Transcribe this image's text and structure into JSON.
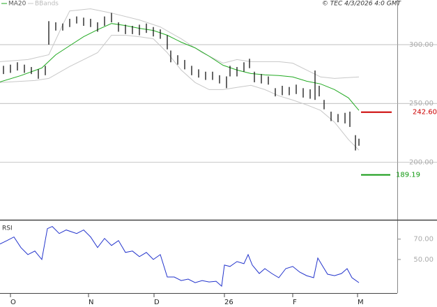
{
  "chart_data": [
    {
      "type": "ohlc",
      "credit": "© TEC 4/3/2026 4:0 GMT",
      "xlim": [
        0,
        114
      ],
      "ylim": [
        151,
        338
      ],
      "yticks": [
        {
          "value": 300,
          "label": "300.00"
        },
        {
          "value": 250,
          "label": "250.00"
        },
        {
          "value": 200,
          "label": "200.00"
        }
      ],
      "grid": true,
      "bars": {
        "color": "#000000",
        "x": [
          1,
          3,
          5,
          7,
          9,
          11,
          13,
          14,
          16,
          18,
          20,
          22,
          24,
          26,
          28,
          30,
          32,
          34,
          36,
          38,
          40,
          42,
          44,
          46,
          48,
          49,
          51,
          53,
          55,
          57,
          59,
          61,
          63,
          65,
          66,
          68,
          70,
          71.6,
          73,
          75,
          77,
          79,
          81,
          83,
          85,
          87,
          89,
          90.4,
          91.6,
          93,
          95,
          97,
          99,
          100.4,
          102,
          103
        ],
        "high": [
          282,
          283,
          285,
          283,
          281,
          279,
          282,
          320,
          319,
          318,
          322,
          324,
          323,
          322,
          319,
          324,
          327,
          319,
          317,
          316,
          317,
          318,
          315,
          313,
          308,
          295,
          291,
          287,
          282,
          279,
          277,
          277,
          274,
          273,
          282,
          281,
          285,
          288,
          277,
          275,
          273,
          263,
          265,
          264,
          266,
          263,
          262,
          278,
          265,
          253,
          243,
          241,
          242,
          243,
          223,
          220
        ],
        "low": [
          275,
          276,
          278,
          276,
          275,
          271,
          274,
          300,
          312,
          312,
          315,
          318,
          316,
          315,
          311,
          316,
          319,
          311,
          309,
          309,
          308,
          310,
          307,
          305,
          296,
          285,
          283,
          279,
          274,
          272,
          270,
          270,
          267,
          263,
          273,
          273,
          277,
          280,
          268,
          267,
          266,
          256,
          257,
          257,
          258,
          255,
          254,
          253,
          256,
          245,
          235,
          234,
          233,
          230,
          210,
          214
        ]
      },
      "ma": {
        "name": "MA20",
        "color": "#22aa22",
        "x": [
          0,
          6,
          12,
          16,
          20,
          24,
          28,
          32,
          36,
          40,
          44,
          48,
          52,
          56,
          60,
          64,
          68,
          72,
          76,
          80,
          84,
          88,
          92,
          96,
          100,
          103
        ],
        "values": [
          268.3,
          273.7,
          280.2,
          291.4,
          299.1,
          306.8,
          312.7,
          318.0,
          316.3,
          313.9,
          312.1,
          308.0,
          302.1,
          297.3,
          290.2,
          282.5,
          278.4,
          275.4,
          274.3,
          273.7,
          272.5,
          268.9,
          266.6,
          261.8,
          254.7,
          244.1
        ]
      },
      "bbands": {
        "name": "BBands",
        "color": "#c8c8c8",
        "upper": {
          "x": [
            0,
            8,
            14,
            18,
            20,
            26,
            32,
            40,
            46,
            52,
            58,
            64,
            68,
            72,
            76,
            80,
            84,
            88,
            92,
            96,
            103
          ],
          "values": [
            285.5,
            287.3,
            291.4,
            316.9,
            328.7,
            330.5,
            326.9,
            321,
            315.1,
            305,
            293.2,
            284.3,
            287.3,
            285.5,
            285.5,
            285.5,
            284.3,
            278.4,
            272.5,
            271.3,
            272.5
          ]
        },
        "lower": {
          "x": [
            0,
            10,
            14,
            20,
            28,
            32,
            36,
            40,
            44,
            48,
            52,
            56,
            60,
            64,
            68,
            72,
            76,
            80,
            84,
            88,
            92,
            96,
            100,
            103
          ],
          "values": [
            267.8,
            269.5,
            271.3,
            281.4,
            293.2,
            308,
            308,
            306.8,
            305,
            293.2,
            278.4,
            267.8,
            261.8,
            261.8,
            263.6,
            265.4,
            261.8,
            256.5,
            252.9,
            248.8,
            244.1,
            234,
            219.2,
            210.3
          ]
        }
      },
      "levels": [
        {
          "value": 242.6,
          "label": "242.60",
          "color": "#cc0000"
        },
        {
          "value": 189.19,
          "label": "189.19",
          "color": "#119911"
        }
      ]
    },
    {
      "type": "line",
      "title": "RSI",
      "xlim": [
        0,
        114
      ],
      "ylim": [
        17,
        89
      ],
      "yticks": [
        {
          "value": 70,
          "label": "70.00"
        },
        {
          "value": 50,
          "label": "50.00"
        }
      ],
      "xticks": [
        {
          "value": 3,
          "label": "O"
        },
        {
          "value": 25.4,
          "label": "N"
        },
        {
          "value": 44.2,
          "label": "D"
        },
        {
          "value": 64.4,
          "label": "26"
        },
        {
          "value": 84,
          "label": "F"
        },
        {
          "value": 102.6,
          "label": "M"
        }
      ],
      "series": [
        {
          "color": "#2233cc",
          "x": [
            0,
            2,
            4,
            6,
            8,
            10,
            12,
            13.6,
            15,
            17,
            19,
            22,
            24,
            26,
            28,
            30,
            32,
            34,
            36,
            38,
            40,
            42,
            44,
            46,
            48,
            50,
            52,
            54,
            56,
            58,
            60,
            62,
            63.6,
            64.4,
            66,
            68,
            70,
            71.2,
            72.4,
            74.4,
            76,
            78,
            80,
            82,
            84,
            86,
            88,
            90,
            91.2,
            92.4,
            94,
            96,
            98,
            99.6,
            101,
            103
          ],
          "values": [
            65.2,
            68.6,
            72.1,
            61.7,
            54.8,
            58.3,
            50,
            80.3,
            82.4,
            75.5,
            79,
            75.5,
            79,
            72.1,
            61.7,
            70.7,
            63.8,
            68.6,
            56.9,
            58.3,
            52.8,
            56.9,
            50,
            54.8,
            32.8,
            32.8,
            29.3,
            30.7,
            27.2,
            29.3,
            27.9,
            28.6,
            23.8,
            44.5,
            43.1,
            47.9,
            45.9,
            54.8,
            44.5,
            36.2,
            41,
            36.2,
            32.1,
            41,
            43.1,
            37.6,
            34.1,
            32.1,
            51.4,
            44.5,
            35.5,
            34.1,
            36.2,
            41,
            32.1,
            27.2
          ]
        }
      ]
    }
  ]
}
